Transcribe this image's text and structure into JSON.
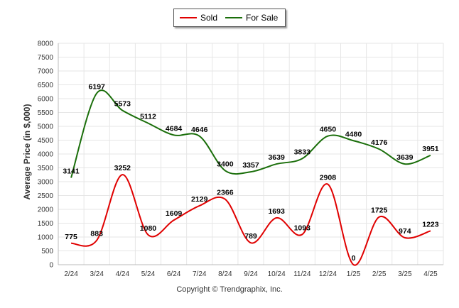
{
  "chart_data": {
    "type": "line",
    "categories": [
      "2/24",
      "3/24",
      "4/24",
      "5/24",
      "6/24",
      "7/24",
      "8/24",
      "9/24",
      "10/24",
      "11/24",
      "12/24",
      "1/25",
      "2/25",
      "3/25",
      "4/25"
    ],
    "series": [
      {
        "name": "Sold",
        "color": "#e00000",
        "values": [
          775,
          883,
          3252,
          1080,
          1609,
          2129,
          2366,
          789,
          1693,
          1093,
          2908,
          0,
          1725,
          974,
          1223
        ]
      },
      {
        "name": "For Sale",
        "color": "#1a6e0a",
        "values": [
          3141,
          6197,
          5573,
          5112,
          4684,
          4646,
          3400,
          3357,
          3639,
          3833,
          4650,
          4480,
          4176,
          3639,
          3951
        ]
      }
    ],
    "ylabel": "Average Price (in $,000)",
    "xlabel": "",
    "ylim": [
      0,
      8000
    ],
    "yticks": [
      0,
      500,
      1000,
      1500,
      2000,
      2500,
      3000,
      3500,
      4000,
      4500,
      5000,
      5500,
      6000,
      6500,
      7000,
      7500,
      8000
    ],
    "grid": true,
    "legend_position": "top"
  },
  "footer": "Copyright © Trendgraphix, Inc."
}
